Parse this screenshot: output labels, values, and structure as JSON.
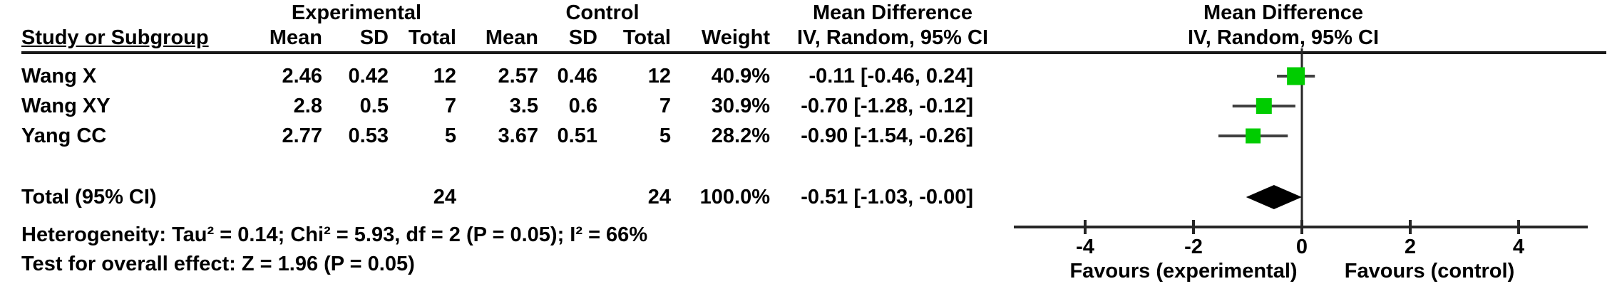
{
  "table": {
    "header": {
      "group_experimental": "Experimental",
      "group_control": "Control",
      "md_stat_title": "Mean Difference",
      "md_plot_title": "Mean Difference",
      "col_study": "Study or Subgroup",
      "col_mean_exp": "Mean",
      "col_sd_exp": "SD",
      "col_total_exp": "Total",
      "col_mean_ctl": "Mean",
      "col_sd_ctl": "SD",
      "col_total_ctl": "Total",
      "col_weight": "Weight",
      "col_ci": "IV, Random, 95% CI",
      "plot_subtitle": "IV, Random, 95% CI"
    },
    "studies": [
      {
        "name": "Wang X",
        "exp_mean": "2.46",
        "exp_sd": "0.42",
        "exp_total": "12",
        "ctl_mean": "2.57",
        "ctl_sd": "0.46",
        "ctl_total": "12",
        "weight": "40.9%",
        "ci_text": "-0.11 [-0.46, 0.24]"
      },
      {
        "name": "Wang XY",
        "exp_mean": "2.8",
        "exp_sd": "0.5",
        "exp_total": "7",
        "ctl_mean": "3.5",
        "ctl_sd": "0.6",
        "ctl_total": "7",
        "weight": "30.9%",
        "ci_text": "-0.70 [-1.28, -0.12]"
      },
      {
        "name": "Yang CC",
        "exp_mean": "2.77",
        "exp_sd": "0.53",
        "exp_total": "5",
        "ctl_mean": "3.67",
        "ctl_sd": "0.51",
        "ctl_total": "5",
        "weight": "28.2%",
        "ci_text": "-0.90 [-1.54, -0.26]"
      }
    ],
    "total": {
      "label": "Total (95% CI)",
      "exp_total": "24",
      "ctl_total": "24",
      "weight": "100.0%",
      "ci_text": "-0.51 [-1.03, -0.00]"
    },
    "heterogeneity": "Heterogeneity: Tau² = 0.14; Chi² = 5.93, df = 2 (P = 0.05); I² = 66%",
    "overall_effect": "Test for overall effect: Z = 1.96 (P = 0.05)"
  },
  "chart_data": {
    "type": "forest",
    "effect_measure": "Mean Difference",
    "method": "IV, Random, 95% CI",
    "studies": [
      {
        "name": "Wang X",
        "md": -0.11,
        "ci_low": -0.46,
        "ci_high": 0.24,
        "weight_pct": 40.9
      },
      {
        "name": "Wang XY",
        "md": -0.7,
        "ci_low": -1.28,
        "ci_high": -0.12,
        "weight_pct": 30.9
      },
      {
        "name": "Yang CC",
        "md": -0.9,
        "ci_low": -1.54,
        "ci_high": -0.26,
        "weight_pct": 28.2
      }
    ],
    "total": {
      "md": -0.51,
      "ci_low": -1.03,
      "ci_high": 0.0,
      "weight_pct": 100.0
    },
    "axis": {
      "ticks": [
        -4,
        -2,
        0,
        2,
        4
      ],
      "min": -5.3,
      "max": 5.3,
      "zero_line": 0
    },
    "favours_left": "Favours (experimental)",
    "favours_right": "Favours (control)",
    "marker_color": "#00cc00",
    "line_color": "#404040",
    "diamond_color": "#000000"
  }
}
